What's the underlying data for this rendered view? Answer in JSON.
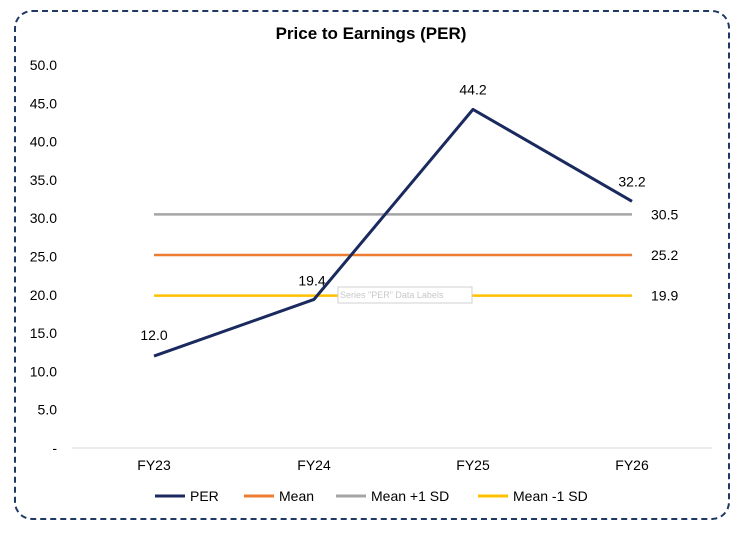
{
  "chart_data": {
    "type": "line",
    "title": "Price to Earnings (PER)",
    "categories": [
      "FY23",
      "FY24",
      "FY25",
      "FY26"
    ],
    "ylim": [
      0,
      50
    ],
    "yticks": [
      "-",
      "5.0",
      "10.0",
      "15.0",
      "20.0",
      "25.0",
      "30.0",
      "35.0",
      "40.0",
      "45.0",
      "50.0"
    ],
    "grid": false,
    "legend_position": "bottom",
    "series": [
      {
        "name": "PER",
        "values": [
          12.0,
          19.4,
          44.2,
          32.2
        ],
        "color": "#1a2a5e",
        "labels": [
          "12.0",
          "19.4",
          "44.2",
          "32.2"
        ]
      },
      {
        "name": "Mean",
        "values": [
          25.2,
          25.2,
          25.2,
          25.2
        ],
        "color": "#ed7d31",
        "end_label": "25.2"
      },
      {
        "name": "Mean +1 SD",
        "values": [
          30.5,
          30.5,
          30.5,
          30.5
        ],
        "color": "#a5a5a5",
        "end_label": "30.5"
      },
      {
        "name": "Mean -1 SD",
        "values": [
          19.9,
          19.9,
          19.9,
          19.9
        ],
        "color": "#ffc000",
        "end_label": "19.9"
      }
    ],
    "tooltip": "Series \"PER\" Data Labels"
  }
}
